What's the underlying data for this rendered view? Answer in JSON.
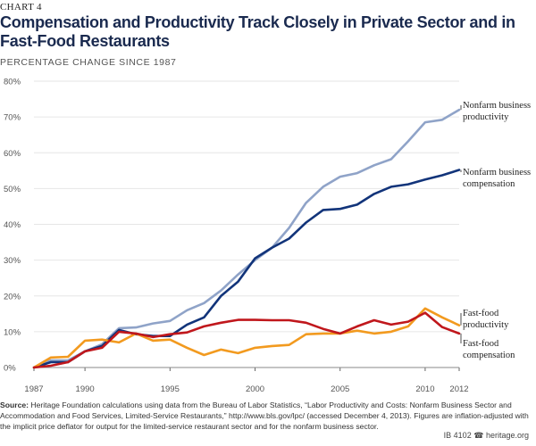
{
  "chart_label": "CHART 4",
  "header": {
    "title": "Compensation and Productivity Track Closely in Private Sector and in Fast-Food Restaurants",
    "subtitle": "PERCENTAGE CHANGE SINCE 1987"
  },
  "chart_data": {
    "type": "line",
    "xlim": [
      1987,
      2012
    ],
    "ylim": [
      0,
      80
    ],
    "x_ticks": [
      "1987",
      "1990",
      "1995",
      "2000",
      "2005",
      "2010",
      "2012"
    ],
    "y_ticks": [
      "0%",
      "10%",
      "20%",
      "30%",
      "40%",
      "50%",
      "60%",
      "70%",
      "80%"
    ],
    "grid": "horizontal",
    "x": [
      1987,
      1988,
      1989,
      1990,
      1991,
      1992,
      1993,
      1994,
      1995,
      1996,
      1997,
      1998,
      1999,
      2000,
      2001,
      2002,
      2003,
      2004,
      2005,
      2006,
      2007,
      2008,
      2009,
      2010,
      2011,
      2012
    ],
    "series": [
      {
        "name": "Nonfarm business productivity",
        "label_lines": [
          "Nonfarm business",
          "productivity"
        ],
        "color": "#8fa3c8",
        "values": [
          0,
          2.0,
          2.0,
          4.5,
          6.5,
          11,
          11.2,
          12.3,
          13.0,
          16.0,
          18.0,
          21.5,
          26.0,
          30.0,
          33.5,
          39.0,
          46.0,
          50.5,
          53.3,
          54.3,
          56.5,
          58.2,
          63.2,
          68.5,
          69.2,
          72.0
        ]
      },
      {
        "name": "Nonfarm business compensation",
        "label_lines": [
          "Nonfarm business",
          "compensation"
        ],
        "color": "#12347a",
        "values": [
          0,
          1.5,
          1.5,
          4.5,
          6.0,
          10.5,
          9.3,
          8.8,
          8.8,
          12.0,
          14.0,
          20.0,
          24.0,
          30.5,
          33.5,
          36.0,
          40.5,
          44.0,
          44.3,
          45.5,
          48.5,
          50.5,
          51.2,
          52.5,
          53.7,
          55.2
        ]
      },
      {
        "name": "Fast-food productivity",
        "label_lines": [
          "Fast-food",
          "productivity"
        ],
        "color": "#f29a1f",
        "values": [
          0,
          2.8,
          3.0,
          7.5,
          7.8,
          7.0,
          9.5,
          7.5,
          7.8,
          5.5,
          3.5,
          5.0,
          4.0,
          5.5,
          6.0,
          6.3,
          9.3,
          9.5,
          9.5,
          10.3,
          9.5,
          10.0,
          11.5,
          16.5,
          14.0,
          11.8
        ]
      },
      {
        "name": "Fast-food compensation",
        "label_lines": [
          "Fast-food",
          "compensation"
        ],
        "color": "#c0171c",
        "values": [
          0,
          0.5,
          1.5,
          4.5,
          5.5,
          10.0,
          9.5,
          8.5,
          9.3,
          9.8,
          11.5,
          12.5,
          13.3,
          13.3,
          13.2,
          13.2,
          12.5,
          10.8,
          9.5,
          11.5,
          13.2,
          12.0,
          12.8,
          15.3,
          11.3,
          9.5
        ]
      }
    ]
  },
  "source": {
    "label": "Source:",
    "text": "Heritage Foundation calculations using data from the Bureau of Labor Statistics, “Labor Productivity and Costs: Nonfarm Business Sector and Accommodation and Food Services, Limited-Service Restaurants,” http://www.bls.gov/lpc/ (accessed December 4, 2013). Figures are inflation-adjusted with the implicit price deflator for output for the limited-service restaurant sector and for the nonfarm business sector."
  },
  "footer": {
    "report_id": "IB 4102",
    "logo_glyph": "☎",
    "site": "heritage.org"
  }
}
